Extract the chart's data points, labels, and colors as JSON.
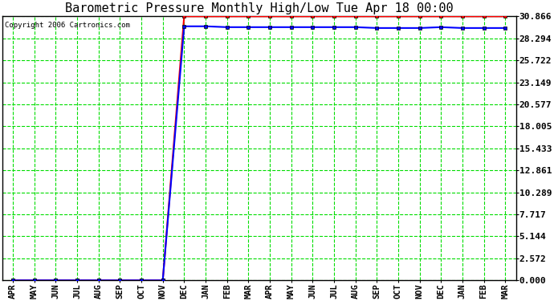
{
  "title": "Barometric Pressure Monthly High/Low Tue Apr 18 00:00",
  "copyright": "Copyright 2006 Cartronics.com",
  "fig_bg_color": "#ffffff",
  "plot_bg_color": "#ffffff",
  "x_labels": [
    "APR",
    "MAY",
    "JUN",
    "JUL",
    "AUG",
    "SEP",
    "OCT",
    "NOV",
    "DEC",
    "JAN",
    "FEB",
    "MAR",
    "APR",
    "MAY",
    "JUN",
    "JUL",
    "AUG",
    "SEP",
    "OCT",
    "NOV",
    "DEC",
    "JAN",
    "FEB",
    "MAR"
  ],
  "yticks": [
    0.0,
    2.572,
    5.144,
    7.717,
    10.289,
    12.861,
    15.433,
    18.005,
    20.577,
    23.149,
    25.722,
    28.294,
    30.866
  ],
  "ymin": 0.0,
  "ymax": 30.866,
  "high_values": [
    0,
    0,
    0,
    0,
    0,
    0,
    0,
    0,
    30.866,
    30.866,
    30.866,
    30.866,
    30.866,
    30.866,
    30.866,
    30.866,
    30.866,
    30.866,
    30.866,
    30.866,
    30.866,
    30.866,
    30.866,
    30.866
  ],
  "low_values": [
    0,
    0,
    0,
    0,
    0,
    0,
    0,
    0,
    29.7,
    29.7,
    29.6,
    29.6,
    29.6,
    29.6,
    29.6,
    29.6,
    29.6,
    29.5,
    29.5,
    29.5,
    29.6,
    29.5,
    29.5,
    29.5
  ],
  "high_color": "#ff0000",
  "low_color": "#0000ff",
  "grid_color": "#00dd00",
  "grid_style": "--",
  "marker_size": 3.5,
  "title_fontsize": 11,
  "tick_fontsize": 8,
  "label_fontsize": 7.5
}
